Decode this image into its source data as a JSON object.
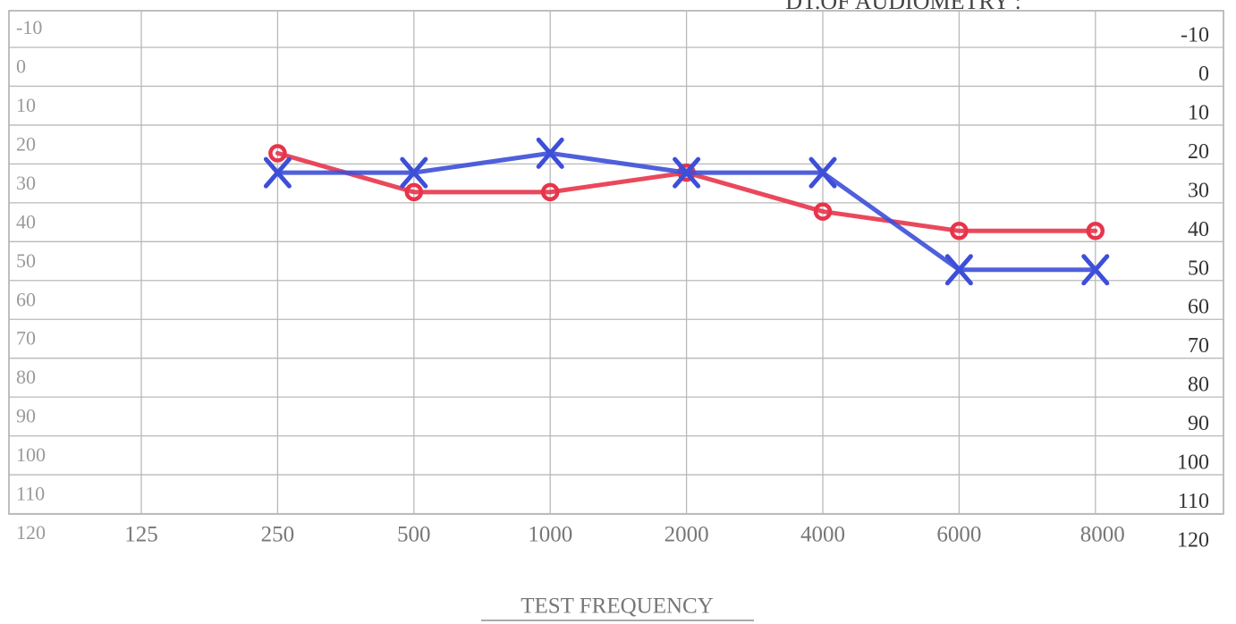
{
  "chart_data": {
    "type": "line",
    "title": "DT.OF AUDIOMETRY :",
    "x_label": "TEST FREQUENCY",
    "categories": [
      "125",
      "250",
      "500",
      "1000",
      "2000",
      "4000",
      "6000",
      "8000"
    ],
    "series": [
      {
        "color": "#e8344a",
        "marker": "o",
        "values": [
          null,
          20,
          30,
          30,
          25,
          35,
          40,
          40
        ]
      },
      {
        "color": "#3d4fd8",
        "marker": "x",
        "values": [
          null,
          25,
          25,
          20,
          25,
          25,
          50,
          50
        ]
      }
    ],
    "ylim": [
      -10,
      120
    ],
    "yticks": [
      -10,
      0,
      10,
      20,
      30,
      40,
      50,
      60,
      70,
      80,
      90,
      100,
      110,
      120
    ],
    "grid": true
  }
}
